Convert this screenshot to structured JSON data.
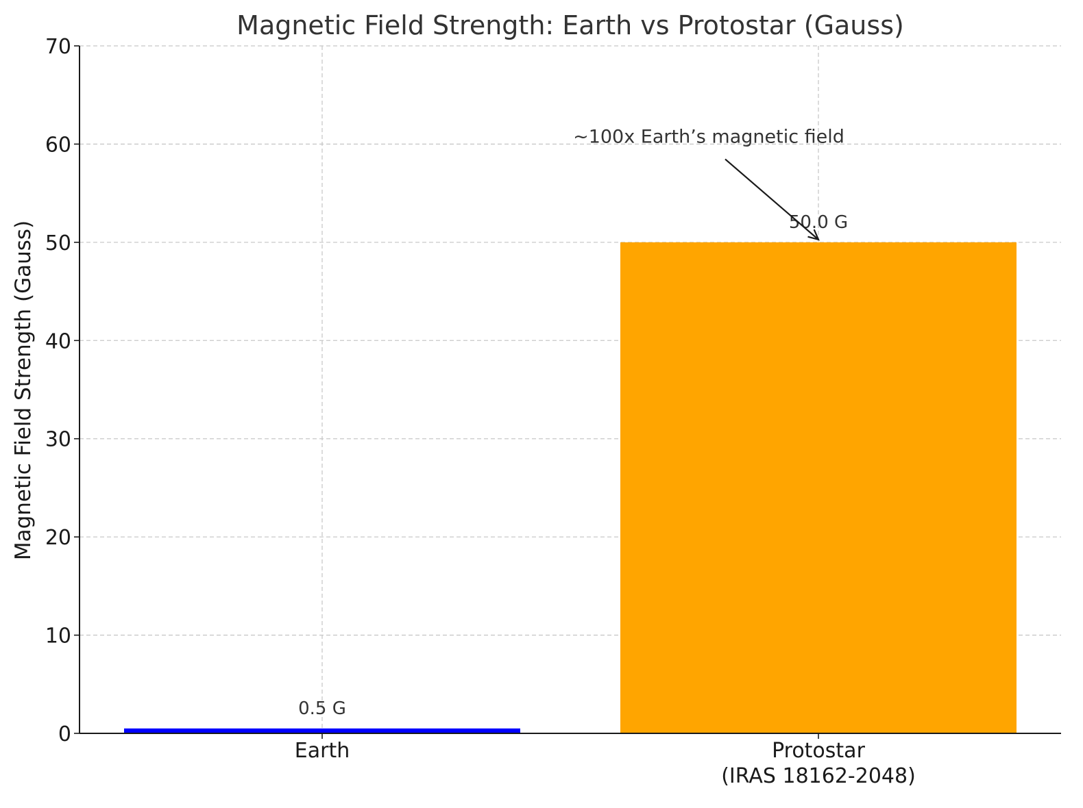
{
  "chart_data": {
    "type": "bar",
    "title": "Magnetic Field Strength: Earth vs Protostar (Gauss)",
    "xlabel": "",
    "ylabel": "Magnetic Field Strength (Gauss)",
    "ylim": [
      0,
      70
    ],
    "yticks": [
      0,
      10,
      20,
      30,
      40,
      50,
      60,
      70
    ],
    "grid": true,
    "categories": [
      {
        "lines": [
          "Earth"
        ],
        "value": 0.5,
        "value_label": "0.5 G",
        "color": "#0000ff"
      },
      {
        "lines": [
          "Protostar",
          "(IRAS 18162-2048)"
        ],
        "value": 50.0,
        "value_label": "50.0 G",
        "color": "#ffa500"
      }
    ],
    "annotation": {
      "text": "~100x Earth’s magnetic field",
      "target_category": 1,
      "target_value": 50.0,
      "text_value": 60
    }
  }
}
